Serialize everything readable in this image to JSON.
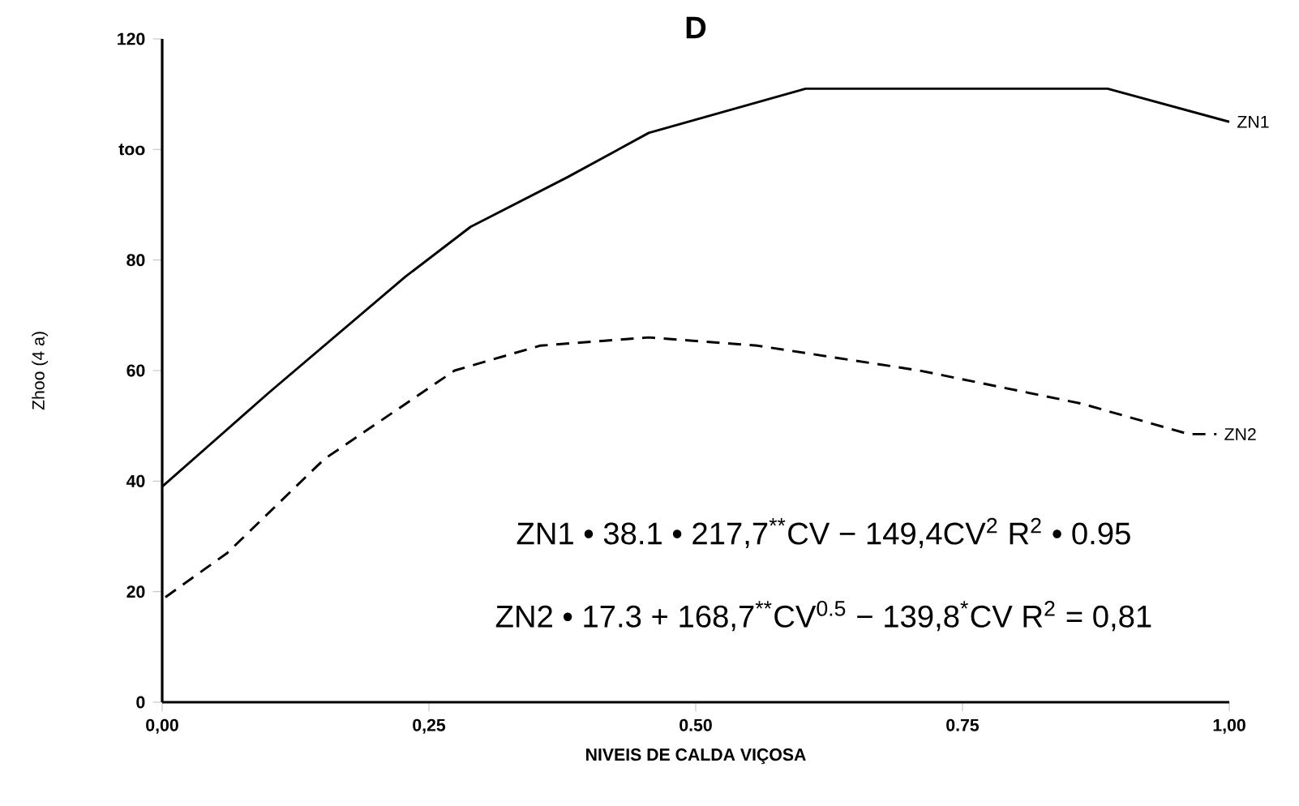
{
  "chart_data": {
    "type": "line",
    "title": "D",
    "xlabel": "NIVEIS DE CALDA VIÇOSA",
    "ylabel": "Zhoo (4 a)",
    "xlim": [
      0,
      1
    ],
    "ylim": [
      0,
      120
    ],
    "xticks": [
      {
        "value": 0,
        "label": "0,00"
      },
      {
        "value": 0.25,
        "label": "0,25"
      },
      {
        "value": 0.5,
        "label": "0.50"
      },
      {
        "value": 0.75,
        "label": "0.75"
      },
      {
        "value": 1,
        "label": "1,00"
      }
    ],
    "yticks": [
      0,
      20,
      40,
      60,
      80,
      {
        "value": 100,
        "label": "too"
      },
      120
    ],
    "grid": false,
    "legend": false,
    "marker": "none",
    "series": [
      {
        "name": "ZN1",
        "color": "#000000",
        "line_style": "solid",
        "x": [
          0,
          0.1,
          0.228,
          0.289,
          0.38,
          0.456,
          0.603,
          0.886,
          1.0
        ],
        "values": [
          39,
          56,
          77,
          86,
          95,
          103,
          111,
          111,
          105
        ]
      },
      {
        "name": "ZN2",
        "color": "#000000",
        "line_style": "dashed",
        "x": [
          0.003,
          0.061,
          0.152,
          0.274,
          0.354,
          0.456,
          0.558,
          0.71,
          0.862,
          0.962,
          0.988
        ],
        "values": [
          19,
          27,
          44,
          60,
          64.5,
          66,
          64.5,
          60,
          54,
          48.5,
          48.5
        ]
      }
    ],
    "annotations": [
      "ZN1 • 38.1 • 217,7$^{**}$CV − 149,4CV$^{2}$  R$^{2}$ • 0.95",
      "ZN2 • 17.3 + 168,7$^{**}$CV$^{0.5}$ − 139,8$^{*}$CV  R$^{2}$ = 0,81"
    ]
  }
}
